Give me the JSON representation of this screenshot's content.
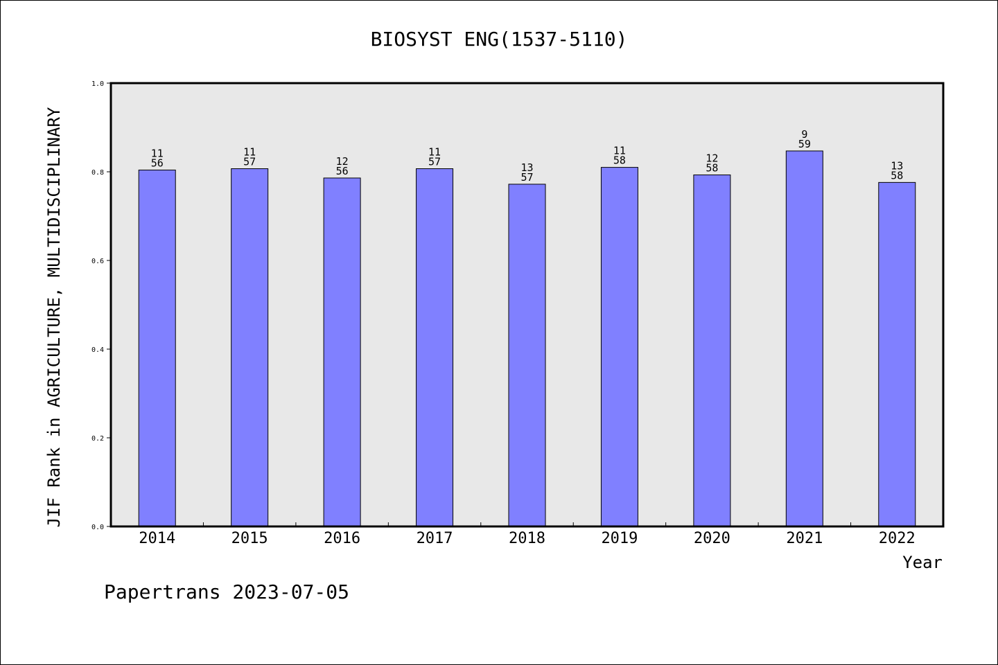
{
  "chart_data": {
    "type": "bar",
    "title": "BIOSYST ENG(1537-5110)",
    "xlabel": "Year",
    "ylabel": "JIF Rank in AGRICULTURE, MULTIDISCIPLINARY",
    "ylim": [
      0.0,
      1.0
    ],
    "yticks": [
      "0.0",
      "0.2",
      "0.4",
      "0.6",
      "0.8",
      "1.0"
    ],
    "grid": false,
    "categories": [
      "2014",
      "2015",
      "2016",
      "2017",
      "2018",
      "2019",
      "2020",
      "2021",
      "2022"
    ],
    "values": [
      0.804,
      0.807,
      0.786,
      0.807,
      0.772,
      0.81,
      0.793,
      0.847,
      0.776
    ],
    "rank_labels": [
      "11",
      "11",
      "12",
      "11",
      "13",
      "11",
      "12",
      "9",
      "13"
    ],
    "total_labels": [
      "56",
      "57",
      "56",
      "57",
      "57",
      "58",
      "58",
      "59",
      "58"
    ],
    "bar_color": "#8080ff",
    "plot_background": "#e8e8e8"
  },
  "footer": "Papertrans 2023-07-05"
}
